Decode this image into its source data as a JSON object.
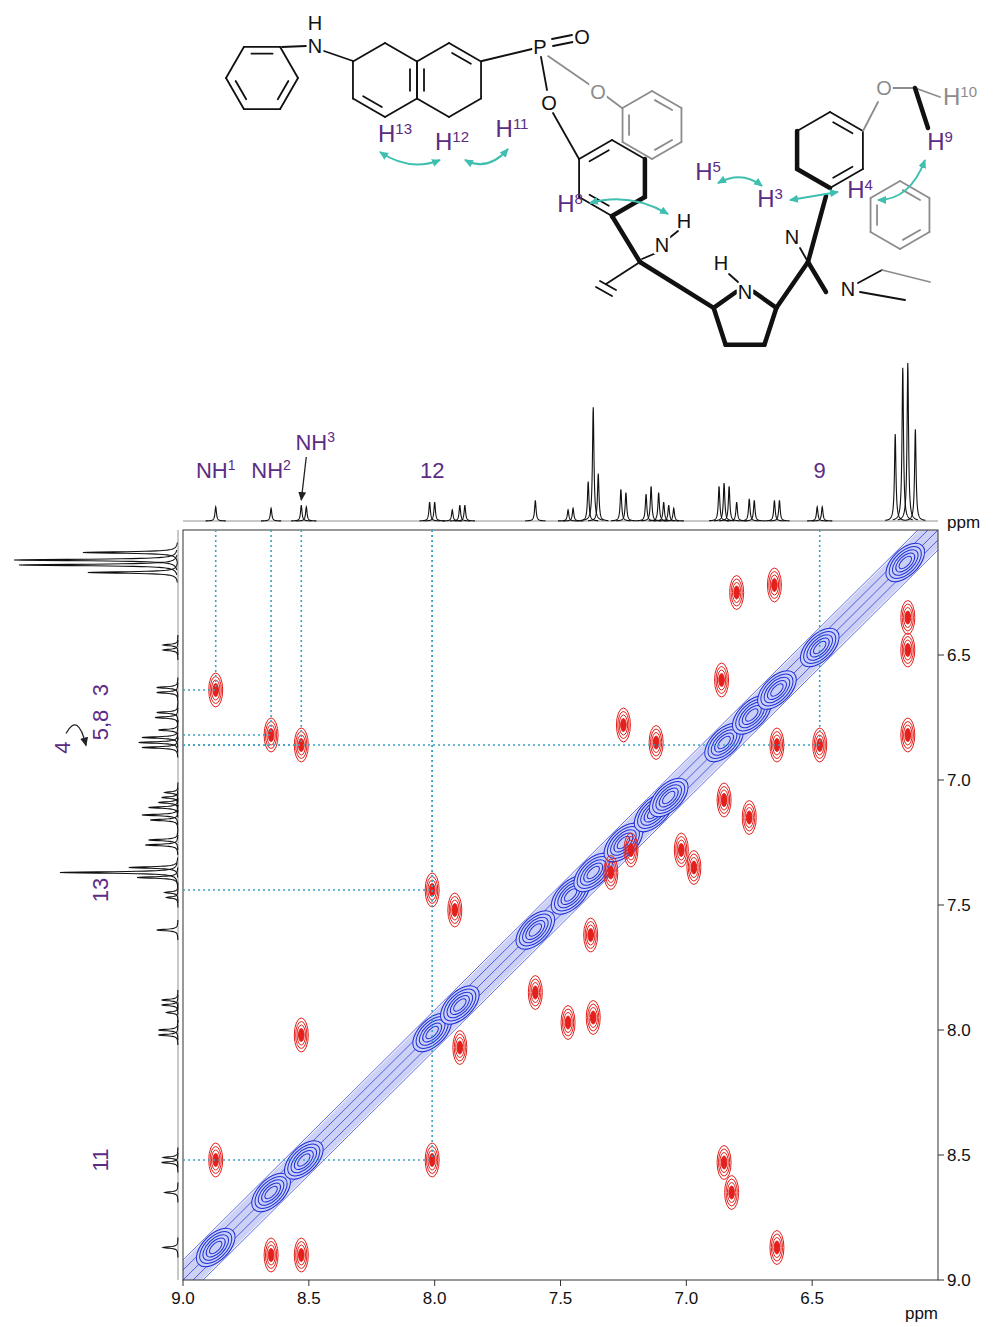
{
  "structure": {
    "labels": [
      {
        "text": "H"
      },
      {
        "text": "N"
      },
      {
        "text": "P"
      },
      {
        "text": "O"
      },
      {
        "text": "O"
      },
      {
        "text": "O"
      },
      {
        "text": "O"
      },
      {
        "text": "H",
        "sup": "13"
      },
      {
        "text": "H",
        "sup": "12"
      },
      {
        "text": "H",
        "sup": "11"
      },
      {
        "text": "H",
        "sup": "8"
      },
      {
        "text": "H",
        "sup": "5"
      },
      {
        "text": "H",
        "sup": "3"
      },
      {
        "text": "H",
        "sup": "4"
      },
      {
        "text": "H",
        "sup": "9"
      },
      {
        "text": "H",
        "sup": "10"
      },
      {
        "text": "H"
      },
      {
        "text": "N"
      },
      {
        "text": "H"
      },
      {
        "text": "N"
      },
      {
        "text": "N"
      },
      {
        "text": "N"
      }
    ]
  },
  "chart_data": {
    "type": "nmr_2d",
    "x_axis_title": "ppm",
    "y_axis_title": "ppm",
    "xlim": [
      9,
      6
    ],
    "ylim": [
      6,
      9
    ],
    "xticks": [
      {
        "value": 9,
        "label": "9.0"
      },
      8.5,
      {
        "value": 8,
        "label": "8.0"
      },
      7.5,
      {
        "value": 7,
        "label": "7.0"
      },
      6.5
    ],
    "yticks": [
      6.5,
      {
        "value": 7,
        "label": "7.0"
      },
      7.5,
      {
        "value": 8,
        "label": "8.0"
      },
      8.5,
      {
        "value": 9,
        "label": "9.0"
      }
    ],
    "spectrum": {
      "ppm": [
        8.87,
        8.65,
        8.53,
        8.51,
        8.02,
        8.0,
        7.93,
        7.9,
        7.88,
        7.6,
        7.47,
        7.45,
        7.39,
        7.37,
        7.35,
        7.26,
        7.24,
        7.16,
        7.14,
        7.11,
        7.09,
        7.07,
        7.05,
        6.87,
        6.85,
        6.83,
        6.8,
        6.75,
        6.73,
        6.65,
        6.63,
        6.48,
        6.46,
        6.17,
        6.14,
        6.12,
        6.09
      ],
      "height": [
        9,
        8,
        10,
        9,
        12,
        12,
        7,
        10,
        10,
        13,
        7,
        8,
        25,
        72,
        30,
        20,
        18,
        17,
        22,
        18,
        12,
        10,
        8,
        22,
        24,
        22,
        12,
        14,
        13,
        13,
        13,
        9,
        9,
        55,
        97,
        100,
        58
      ]
    },
    "diagonal_peaks": {
      "color": "#1e2fd6",
      "ppm": [
        8.87,
        8.65,
        8.52,
        8.01,
        7.9,
        7.6,
        7.46,
        7.37,
        7.25,
        7.13,
        7.07,
        6.85,
        6.74,
        6.64,
        6.47,
        6.13
      ]
    },
    "cross_peaks": {
      "color": "#e3201b",
      "x": [
        8.87,
        8.65,
        8.53,
        6.64,
        6.82,
        6.85,
        8.87,
        8.65,
        8.53,
        8.53,
        8.01,
        8.01,
        7.47,
        7.37,
        7.6,
        7.92,
        7.9,
        6.47,
        6.86,
        6.64,
        6.8,
        6.65,
        6.12,
        6.12,
        6.12,
        6.85,
        6.75,
        7.25,
        7.12,
        7.02,
        6.97,
        7.3,
        7.22,
        7.38
      ],
      "y": [
        6.64,
        6.82,
        6.86,
        8.87,
        8.65,
        8.53,
        8.52,
        8.9,
        8.9,
        8.02,
        8.52,
        7.44,
        7.97,
        7.95,
        7.85,
        7.52,
        8.07,
        6.86,
        6.6,
        6.86,
        6.25,
        6.22,
        6.35,
        6.48,
        6.82,
        7.08,
        7.15,
        6.78,
        6.85,
        7.28,
        7.35,
        7.37,
        7.28,
        7.62
      ]
    },
    "guides": {
      "color": "#3aa3c4",
      "x": [
        8.87,
        8.65,
        8.53,
        6.47,
        8.01,
        8.01
      ],
      "y": [
        6.64,
        6.82,
        6.86,
        6.86,
        7.44,
        8.52
      ]
    },
    "top_labels": [
      {
        "text": "NH",
        "sup": "1",
        "ppm": 8.87
      },
      {
        "text": "NH",
        "sup": "2",
        "ppm": 8.65
      },
      {
        "text": "NH",
        "sup": "3",
        "ppm": 8.53
      },
      {
        "text": "12",
        "ppm": 8.01
      },
      {
        "text": "9",
        "ppm": 6.47
      }
    ],
    "side_labels": [
      {
        "text": "4",
        "ppm": 6.87
      },
      {
        "text": "5,8",
        "ppm": 6.82
      },
      {
        "text": "3",
        "ppm": 6.64
      },
      {
        "text": "13",
        "ppm": 7.44
      },
      {
        "text": "11",
        "ppm": 8.52
      }
    ]
  }
}
